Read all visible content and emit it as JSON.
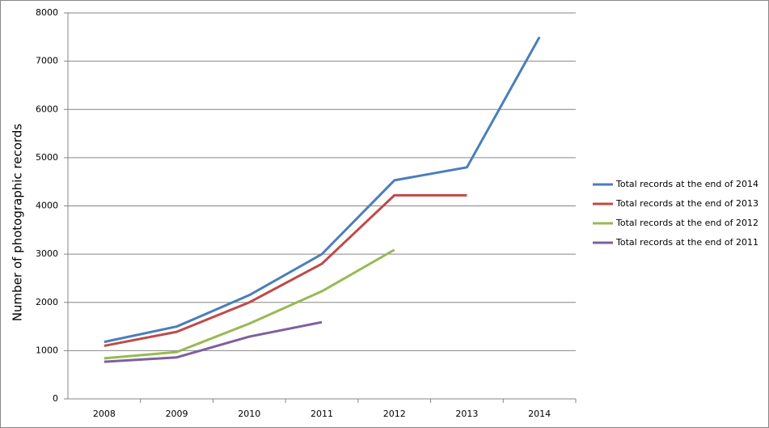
{
  "chart_data": {
    "type": "line",
    "y_label": "Number of photographic records",
    "categories": [
      "2008",
      "2009",
      "2010",
      "2011",
      "2012",
      "2013",
      "2014"
    ],
    "series": [
      {
        "name": "Total records at the end of 2014",
        "color": "#4a7ebb",
        "values": [
          1180,
          1500,
          2150,
          3000,
          4530,
          4800,
          7500
        ]
      },
      {
        "name": "Total records at the end of 2013",
        "color": "#be4b48",
        "values": [
          1100,
          1390,
          2000,
          2800,
          4220,
          4220,
          null
        ]
      },
      {
        "name": "Total records at the end of 2012",
        "color": "#98b954",
        "values": [
          840,
          970,
          1560,
          2230,
          3090,
          null,
          null
        ]
      },
      {
        "name": "Total records at the end of 2011",
        "color": "#7d60a0",
        "values": [
          770,
          860,
          1290,
          1590,
          null,
          null,
          null
        ]
      }
    ],
    "ylim": [
      0,
      8000
    ],
    "yticks": [
      0,
      1000,
      2000,
      3000,
      4000,
      5000,
      6000,
      7000,
      8000
    ],
    "grid": true,
    "legend": "right"
  }
}
